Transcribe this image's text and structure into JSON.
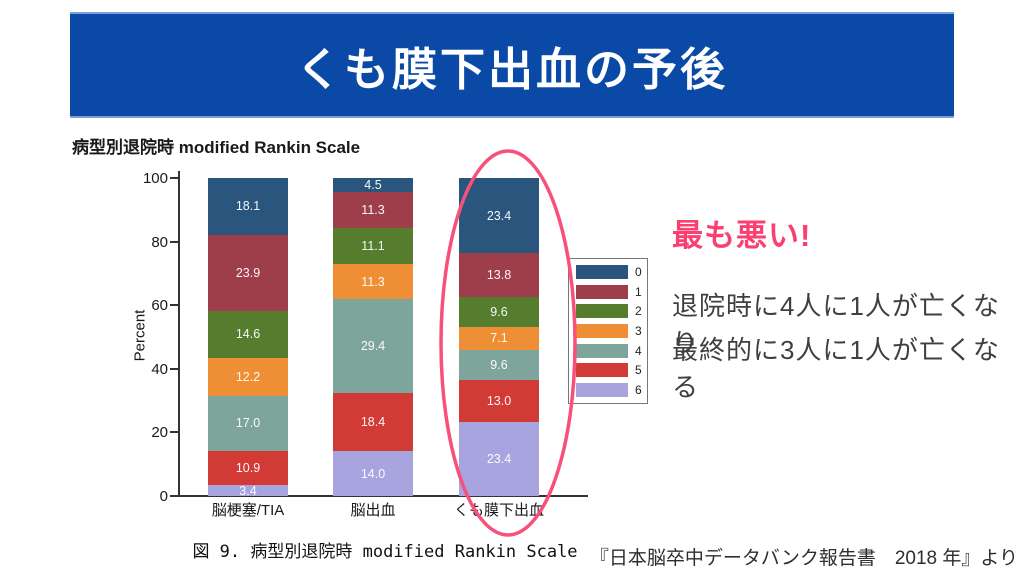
{
  "banner": {
    "title": "くも膜下出血の予後",
    "background": "#0a4aa6"
  },
  "chart_data": {
    "type": "bar",
    "stacked": true,
    "title": "病型別退院時  modified Rankin Scale",
    "ylabel": "Percent",
    "ylim": [
      0,
      100
    ],
    "yticks": [
      0,
      20,
      40,
      60,
      80,
      100
    ],
    "grid": false,
    "legend_position": "right",
    "categories": [
      "脳梗塞/TIA",
      "脳出血",
      "くも膜下出血"
    ],
    "series": [
      {
        "name": "0",
        "color": "#2a567e",
        "values": [
          18.1,
          4.5,
          23.4
        ]
      },
      {
        "name": "1",
        "color": "#9e3e4b",
        "values": [
          23.9,
          11.3,
          13.8
        ]
      },
      {
        "name": "2",
        "color": "#557d2d",
        "values": [
          14.6,
          11.1,
          9.6
        ]
      },
      {
        "name": "3",
        "color": "#ef8f35",
        "values": [
          12.2,
          11.3,
          7.1
        ]
      },
      {
        "name": "4",
        "color": "#7da59c",
        "values": [
          17.0,
          29.4,
          9.6
        ]
      },
      {
        "name": "5",
        "color": "#d23a35",
        "values": [
          10.9,
          18.4,
          13.0
        ]
      },
      {
        "name": "6",
        "color": "#a7a4e0",
        "values": [
          3.4,
          14.0,
          23.4
        ]
      }
    ],
    "highlight": {
      "category": "くも膜下出血",
      "shape": "ellipse",
      "color": "#f8507a"
    }
  },
  "annotation": {
    "headline": "最も悪い!",
    "headline_color": "#fb3f70",
    "line1": "退院時に4人に1人が亡くなり",
    "line2": "最終的に3人に1人が亡くなる"
  },
  "caption": "図 9.  病型別退院時 modified Rankin Scale",
  "citation": "『日本脳卒中データバンク報告書　2018 年』より"
}
